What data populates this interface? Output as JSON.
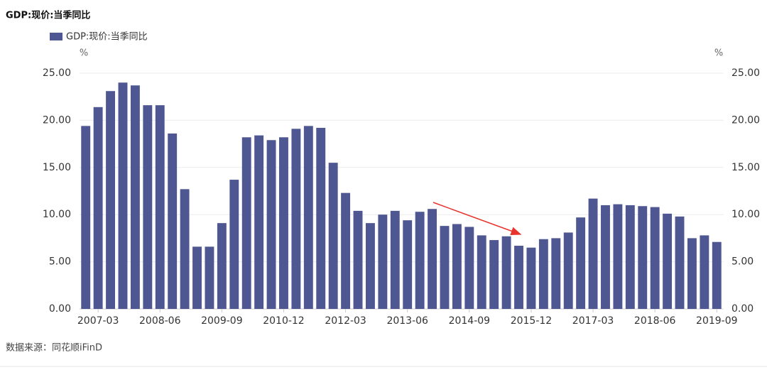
{
  "chart_data": {
    "type": "bar",
    "title": "GDP:现价:当季同比",
    "source": "数据来源：同花顺iFinD",
    "y_unit": "%",
    "y2_unit": "%",
    "categories": [
      null,
      "2007-03",
      null,
      null,
      null,
      null,
      "2008-06",
      null,
      null,
      null,
      null,
      "2009-09",
      null,
      null,
      null,
      null,
      "2010-12",
      null,
      null,
      null,
      null,
      "2012-03",
      null,
      null,
      null,
      null,
      "2013-06",
      null,
      null,
      null,
      null,
      "2014-09",
      null,
      null,
      null,
      null,
      "2015-12",
      null,
      null,
      null,
      null,
      "2017-03",
      null,
      null,
      null,
      null,
      "2018-06",
      null,
      null,
      null,
      null,
      "2019-09"
    ],
    "series": [
      {
        "name": "GDP:现价:当季同比",
        "color": "#4e5792",
        "values": [
          19.4,
          21.4,
          23.1,
          24.0,
          23.7,
          21.6,
          21.6,
          18.6,
          12.7,
          6.6,
          6.6,
          9.1,
          13.7,
          18.2,
          18.4,
          17.9,
          18.2,
          19.1,
          19.4,
          19.2,
          15.5,
          12.3,
          10.4,
          9.1,
          10.0,
          10.4,
          9.4,
          10.3,
          10.6,
          8.8,
          9.0,
          8.7,
          7.8,
          7.3,
          7.7,
          6.7,
          6.5,
          7.4,
          7.5,
          8.1,
          9.7,
          11.7,
          11.0,
          11.1,
          11.0,
          10.9,
          10.8,
          10.1,
          9.8,
          7.5,
          7.8,
          7.1
        ]
      }
    ],
    "ylim": [
      0,
      25
    ],
    "yticks": [
      {
        "value": 0,
        "label": "0.00"
      },
      {
        "value": 5,
        "label": "5.00"
      },
      {
        "value": 10,
        "label": "10.00"
      },
      {
        "value": 15,
        "label": "15.00"
      },
      {
        "value": 20,
        "label": "20.00"
      },
      {
        "value": 25,
        "label": "25.00"
      }
    ],
    "y2lim": [
      0,
      25
    ],
    "y2ticks": [
      {
        "value": 0,
        "label": "0.00"
      },
      {
        "value": 5,
        "label": "5.00"
      },
      {
        "value": 10,
        "label": "10.00"
      },
      {
        "value": 15,
        "label": "15.00"
      },
      {
        "value": 20,
        "label": "20.00"
      },
      {
        "value": 25,
        "label": "25.00"
      }
    ],
    "grid": true
  }
}
